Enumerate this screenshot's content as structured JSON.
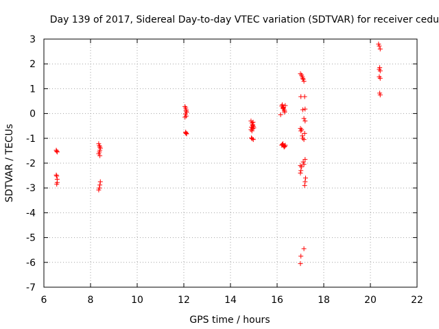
{
  "chart_data": {
    "type": "scatter",
    "title": "Day 139 of 2017, Sidereal Day-to-day VTEC variation (SDTVAR) for receiver cedu",
    "xlabel": "GPS time / hours",
    "ylabel": "SDTVAR / TECUs",
    "xlim": [
      6,
      22
    ],
    "ylim": [
      -7,
      3
    ],
    "xticks": [
      6,
      8,
      10,
      12,
      14,
      16,
      18,
      20,
      22
    ],
    "xtick_labels": [
      "6",
      "8",
      "10",
      "12",
      "14",
      "16",
      "18",
      "20",
      "22"
    ],
    "yticks": [
      -7,
      -6,
      -5,
      -4,
      -3,
      -2,
      -1,
      0,
      1,
      2,
      3
    ],
    "ytick_labels": [
      "-7",
      "-6",
      "-5",
      "-4",
      "-3",
      "-2",
      "-1",
      "0",
      "1",
      "2",
      "3"
    ],
    "grid": true,
    "marker": "+",
    "color": "#ff0000",
    "series": [
      {
        "name": "SDTVAR",
        "x": [
          6.53,
          6.55,
          6.57,
          6.53,
          6.55,
          6.57,
          6.55,
          6.57,
          8.35,
          8.38,
          8.4,
          8.42,
          8.4,
          8.38,
          8.35,
          8.4,
          8.42,
          8.4,
          8.38,
          8.35,
          12.05,
          12.08,
          12.1,
          12.12,
          12.07,
          12.1,
          12.05,
          12.08,
          12.1,
          12.12,
          12.08,
          12.1,
          14.88,
          14.92,
          14.95,
          14.98,
          14.9,
          14.95,
          14.88,
          14.92,
          14.97,
          14.9,
          14.93,
          14.98,
          14.95,
          15.0,
          16.15,
          16.2,
          16.22,
          16.25,
          16.28,
          16.3,
          16.32,
          16.35,
          16.22,
          16.28,
          16.33,
          16.2,
          16.25,
          16.3,
          16.35,
          16.25,
          16.32,
          17.0,
          17.05,
          17.08,
          17.1,
          17.12,
          17.15,
          17.18,
          17.2,
          17.1,
          17.15,
          17.2,
          17.0,
          17.05,
          17.02,
          17.08,
          17.1,
          17.15,
          17.18,
          17.2,
          17.12,
          17.15,
          17.05,
          17.0,
          17.02,
          17.0,
          17.22,
          17.2,
          17.18,
          17.15,
          17.02,
          17.0,
          17.02,
          20.35,
          20.38,
          20.42,
          20.4,
          20.38,
          20.42,
          20.38,
          20.42,
          20.4,
          20.42
        ],
        "y": [
          -1.48,
          -1.52,
          -1.55,
          -2.48,
          -2.52,
          -2.78,
          -2.85,
          -2.65,
          -1.22,
          -1.3,
          -1.35,
          -1.4,
          -1.48,
          -1.55,
          -1.62,
          -1.7,
          -2.75,
          -2.88,
          -3.0,
          -3.08,
          0.28,
          0.22,
          0.15,
          0.05,
          -0.02,
          -0.1,
          -0.15,
          -0.75,
          -0.8,
          -0.82,
          -0.78,
          0.1,
          -0.3,
          -0.38,
          -0.45,
          -0.52,
          -0.55,
          -0.6,
          -0.65,
          -0.7,
          -0.35,
          -0.98,
          -1.02,
          -1.05,
          -0.48,
          -0.58,
          -0.05,
          0.3,
          0.35,
          0.25,
          0.22,
          0.15,
          0.1,
          0.32,
          -1.25,
          -1.3,
          -1.32,
          -1.28,
          -1.22,
          -1.35,
          -1.28,
          0.2,
          0.05,
          1.6,
          1.55,
          1.48,
          1.42,
          1.38,
          1.3,
          0.68,
          0.18,
          0.15,
          -0.2,
          -0.3,
          -0.6,
          -0.65,
          -0.7,
          -0.9,
          -1.0,
          -1.05,
          -0.8,
          -1.85,
          -1.95,
          -2.05,
          -2.15,
          -2.1,
          -2.3,
          -2.4,
          -2.6,
          -2.75,
          -2.9,
          -5.45,
          -5.75,
          -6.05,
          0.68,
          2.8,
          2.72,
          2.6,
          1.85,
          1.78,
          1.72,
          1.48,
          1.42,
          0.82,
          0.75
        ]
      }
    ]
  }
}
